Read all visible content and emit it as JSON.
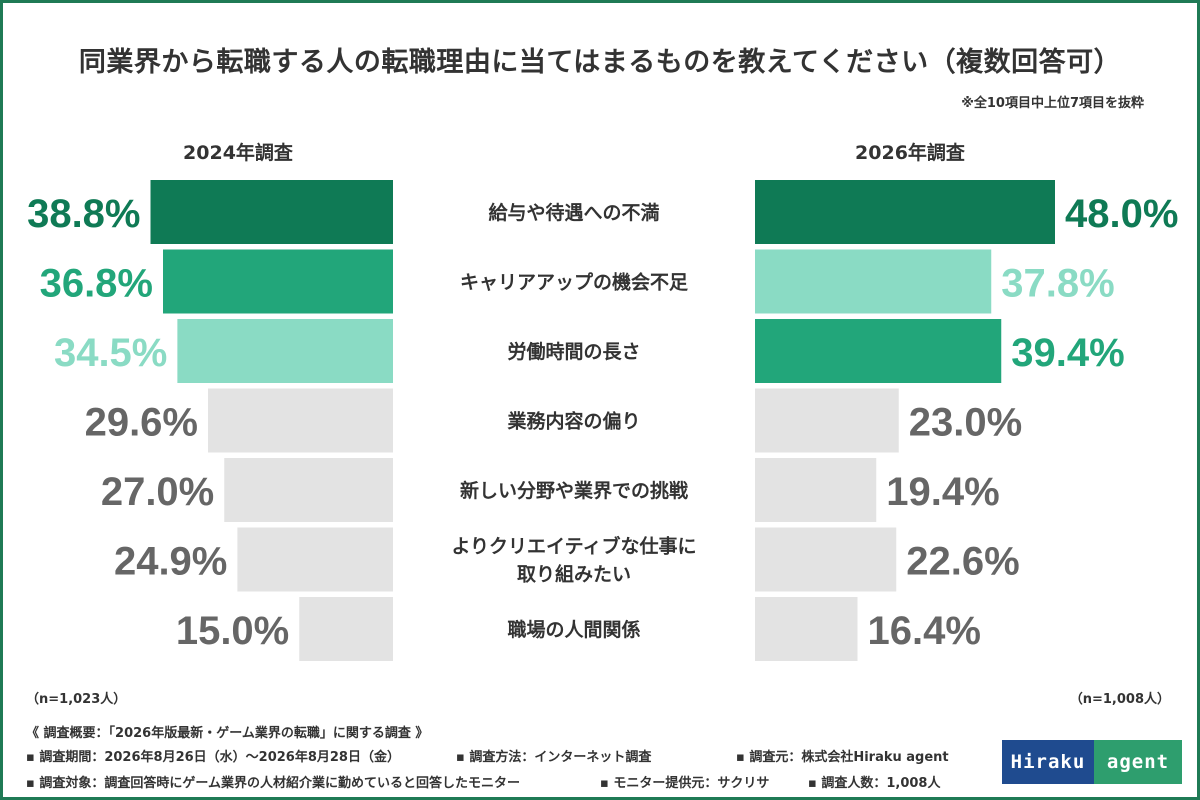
{
  "chart_data": {
    "type": "bar",
    "title": "同業界から転職する人の転職理由に当てはまるものを教えてください（複数回答可）",
    "note": "※全10項目中上位7項目を抜粋",
    "categories": [
      [
        "給与や待遇への不満"
      ],
      [
        "キャリアアップの機会不足"
      ],
      [
        "労働時間の長さ"
      ],
      [
        "業務内容の偏り"
      ],
      [
        "新しい分野や業界での挑戦"
      ],
      [
        "よりクリエイティブな仕事に",
        "取り組みたい"
      ],
      [
        "職場の人間関係"
      ]
    ],
    "series": [
      {
        "name": "2024年調査",
        "values": [
          38.8,
          36.8,
          34.5,
          29.6,
          27.0,
          24.9,
          15.0
        ],
        "labels": [
          "38.8%",
          "36.8%",
          "34.5%",
          "29.6%",
          "27.0%",
          "24.9%",
          "15.0%"
        ],
        "sample": "（n=1,023人）"
      },
      {
        "name": "2026年調査",
        "values": [
          48.0,
          37.8,
          39.4,
          23.0,
          19.4,
          22.6,
          16.4
        ],
        "labels": [
          "48.0%",
          "37.8%",
          "39.4%",
          "23.0%",
          "19.4%",
          "22.6%",
          "16.4%"
        ],
        "sample": "（n=1,008人）"
      }
    ],
    "xlim": [
      0,
      48
    ],
    "colors": {
      "rank1": "#0f7a55",
      "rank2": "#22a67a",
      "rank3": "#8adbc4",
      "other": "#e3e3e3",
      "other_text": "#666666"
    }
  },
  "footer": {
    "overview": "《 調査概要：「2026年版最新・ゲーム業界の転職」に関する調査 》",
    "period": "▪ 調査期間：2026年8月26日（水）～2026年8月28日（金）",
    "method": "▪ 調査方法：インターネット調査",
    "source": "▪ 調査元：株式会社Hiraku agent",
    "target": "▪ 調査対象：調査回答時にゲーム業界の人材紹介業に勤めていると回答したモニター",
    "provider": "▪ モニター提供元：サクリサ",
    "count": "▪ 調査人数：1,008人"
  },
  "logo": {
    "part1": "Hiraku",
    "part2": "agent"
  }
}
